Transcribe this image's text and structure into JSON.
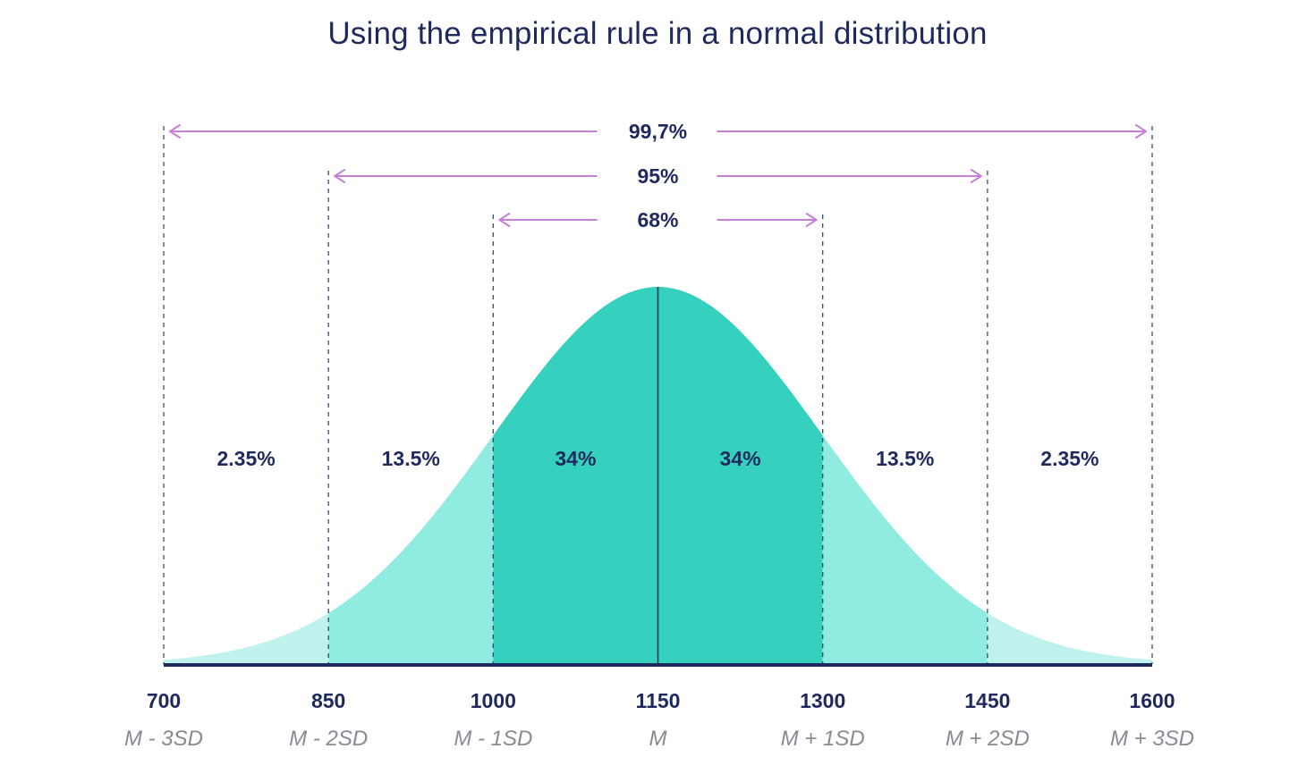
{
  "chart_data": {
    "type": "area",
    "title": "Using the empirical rule in a normal distribution",
    "mean": 1150,
    "sd": 150,
    "xlim": [
      700,
      1600
    ],
    "ticks": [
      {
        "value": 700,
        "label": "700",
        "sublabel": "M - 3SD"
      },
      {
        "value": 850,
        "label": "850",
        "sublabel": "M - 2SD"
      },
      {
        "value": 1000,
        "label": "1000",
        "sublabel": "M - 1SD"
      },
      {
        "value": 1150,
        "label": "1150",
        "sublabel": "M"
      },
      {
        "value": 1300,
        "label": "1300",
        "sublabel": "M + 1SD"
      },
      {
        "value": 1450,
        "label": "1450",
        "sublabel": "M + 2SD"
      },
      {
        "value": 1600,
        "label": "1600",
        "sublabel": "M + 3SD"
      }
    ],
    "segments": [
      {
        "from": 700,
        "to": 850,
        "label": "2.35%",
        "value": 2.35
      },
      {
        "from": 850,
        "to": 1000,
        "label": "13.5%",
        "value": 13.5
      },
      {
        "from": 1000,
        "to": 1150,
        "label": "34%",
        "value": 34
      },
      {
        "from": 1150,
        "to": 1300,
        "label": "34%",
        "value": 34
      },
      {
        "from": 1300,
        "to": 1450,
        "label": "13.5%",
        "value": 13.5
      },
      {
        "from": 1450,
        "to": 1600,
        "label": "2.35%",
        "value": 2.35
      }
    ],
    "ranges": [
      {
        "from": 700,
        "to": 1600,
        "label": "99,7%",
        "value": 99.7
      },
      {
        "from": 850,
        "to": 1450,
        "label": "95%",
        "value": 95
      },
      {
        "from": 1000,
        "to": 1300,
        "label": "68%",
        "value": 68
      }
    ],
    "colors": {
      "outer": "#bff2ec",
      "middle": "#90ebe0",
      "inner": "#36d1be",
      "arrow": "#c77fd9",
      "text": "#1e2a5e",
      "subtext": "#8a8a94",
      "axis": "#1e2a5e",
      "dashed": "#1e2a5e"
    }
  }
}
